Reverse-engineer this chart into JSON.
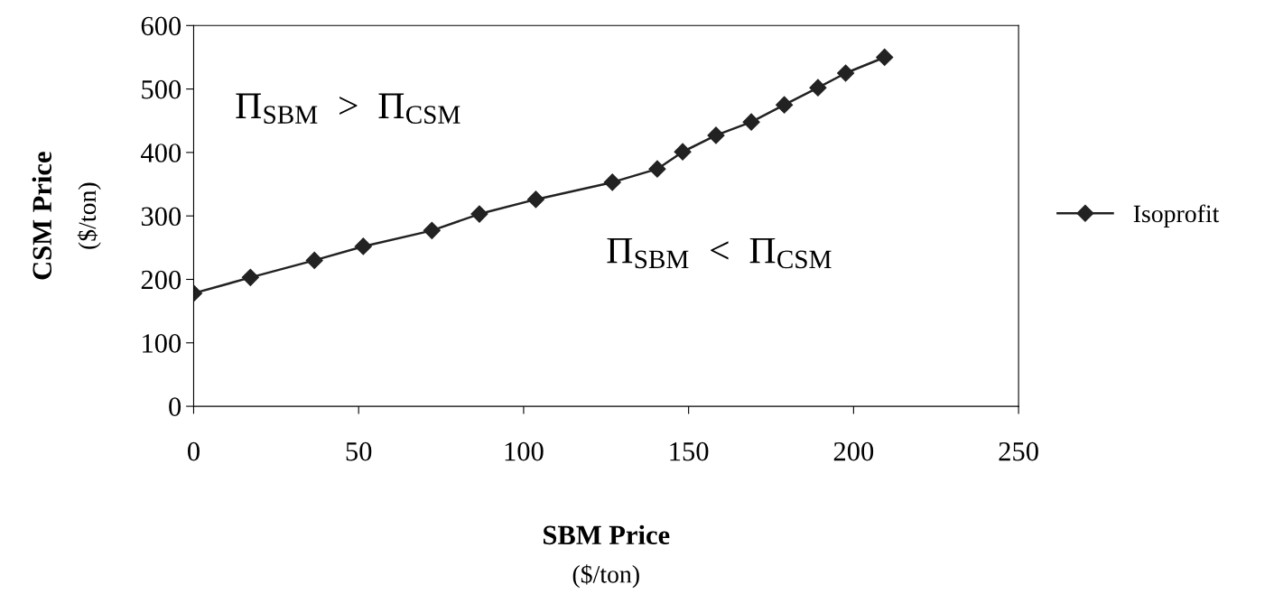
{
  "chart_data": {
    "type": "line",
    "xlabel": "SBM Price\n($/ton)",
    "ylabel": "CSM Price\n($/ton)",
    "series": [
      {
        "name": "Isoprofit",
        "color": "#222222",
        "marker": "diamond",
        "x": [
          0,
          17.2,
          36.6,
          51.4,
          72.2,
          86.6,
          103.7,
          126.9,
          140.5,
          148.2,
          158.3,
          169,
          179,
          189.2,
          197.6,
          209.4
        ],
        "values": [
          178,
          203,
          230,
          252,
          277,
          303,
          326,
          353,
          374,
          401,
          427,
          448,
          475,
          502,
          525,
          550
        ]
      }
    ],
    "xlim": [
      0,
      250
    ],
    "xticks": [
      0,
      50,
      100,
      150,
      200,
      250
    ],
    "ylim": [
      0,
      600
    ],
    "yticks": [
      0,
      100,
      200,
      300,
      400,
      500,
      600
    ],
    "annotations": [
      "Π$_{SBM}$  >  Π$_{CSM}$",
      "Π$_{SBM}$  <  Π$_{CSM}$"
    ],
    "grid": false,
    "legend": "right"
  }
}
